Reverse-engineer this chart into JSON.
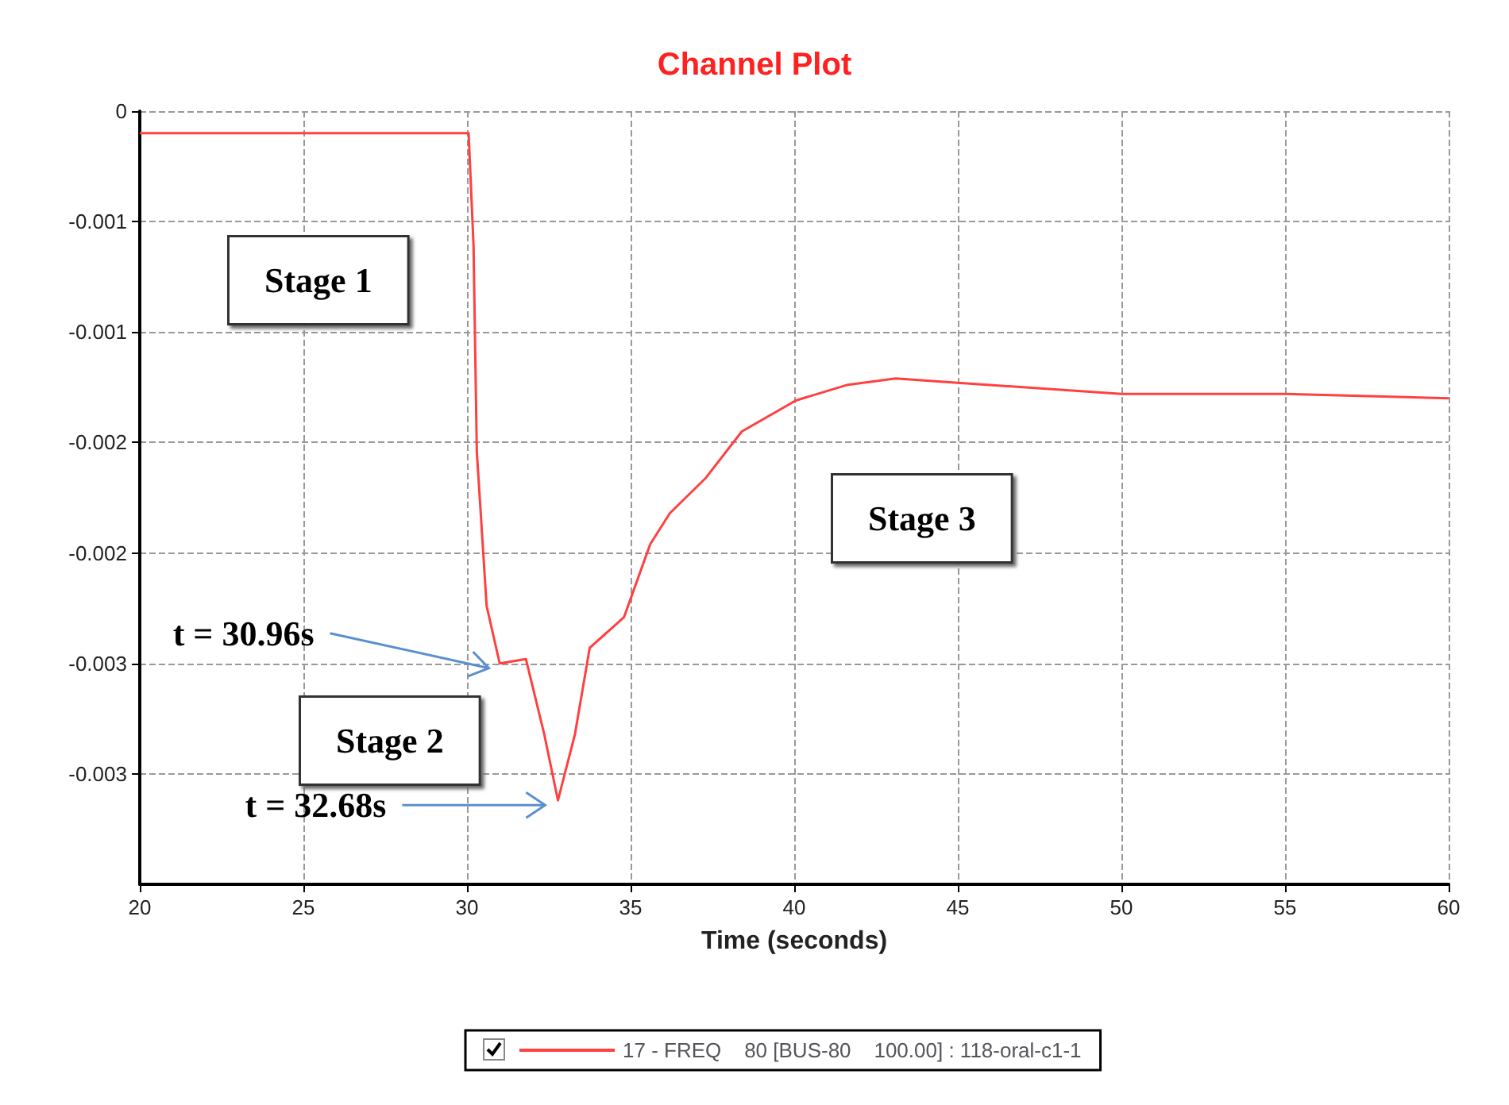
{
  "chart_data": {
    "type": "line",
    "title": "Channel Plot",
    "xlabel": "Time (seconds)",
    "x": [
      20,
      30,
      30.05,
      30.2,
      30.3,
      30.6,
      31.0,
      31.8,
      32.36,
      32.78,
      33.3,
      33.75,
      34.8,
      35.6,
      36.2,
      37.3,
      38.4,
      40.05,
      41.6,
      43.1,
      45,
      50,
      55,
      60
    ],
    "series": [
      {
        "name": "17 - FREQ    80 [BUS-80    100.00] : 118-oral-c1-1",
        "color": "#ff4040",
        "values": [
          -0.0001,
          -0.0001,
          -0.0001,
          -0.00061,
          -0.00154,
          -0.00224,
          -0.0025,
          -0.00248,
          -0.00282,
          -0.00312,
          -0.00282,
          -0.00243,
          -0.00229,
          -0.00196,
          -0.00182,
          -0.00166,
          -0.00145,
          -0.00131,
          -0.00124,
          -0.00121,
          -0.00123,
          -0.00128,
          -0.00128,
          -0.0013
        ]
      }
    ],
    "xlim": [
      20,
      60
    ],
    "xticks": [
      20,
      25,
      30,
      35,
      40,
      45,
      50,
      55,
      60
    ],
    "ylim": [
      -0.0035,
      0
    ],
    "yticks": [
      0,
      {
        "value": -0.0005,
        "label": "-0.001"
      },
      {
        "value": -0.001,
        "label": "-0.001"
      },
      {
        "value": -0.0015,
        "label": "-0.002"
      },
      {
        "value": -0.002,
        "label": "-0.002"
      },
      {
        "value": -0.0025,
        "label": "-0.003"
      },
      {
        "value": -0.003,
        "label": "-0.003"
      }
    ],
    "grid": true,
    "legend": "bottom",
    "marker": "none",
    "line_style": "solid",
    "annotations": [
      "Stage 1",
      "Stage 2",
      "Stage 3",
      {
        "text": "t = 30.96s",
        "x": 30.96,
        "y": -0.0025
      },
      {
        "text": "t = 32.68s",
        "x": 32.68,
        "y": -0.00312
      }
    ]
  }
}
